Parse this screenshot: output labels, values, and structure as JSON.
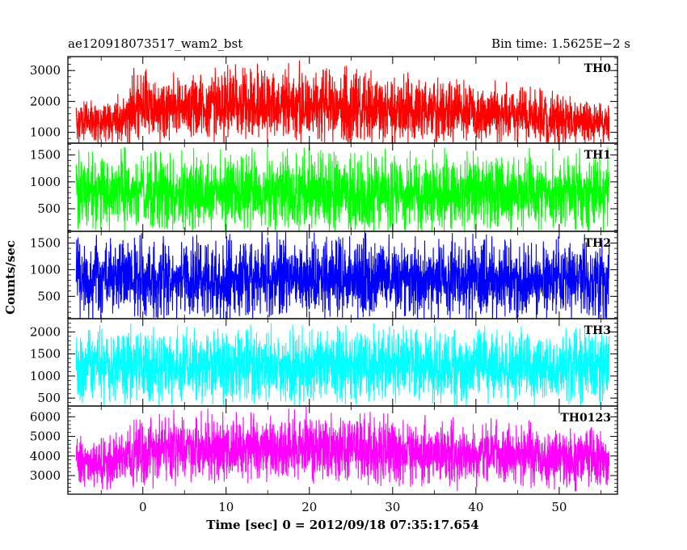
{
  "chart_data": {
    "type": "line",
    "title": "ae120918073517_wam2_bst",
    "subtitle": "Bin time: 1.5625E−2 s",
    "xlabel": "Time [sec] 0 = 2012/09/18 07:35:17.654",
    "ylabel": "Counts/sec",
    "xlim": [
      -9,
      57
    ],
    "x_ticks": [
      0,
      10,
      20,
      30,
      40,
      50
    ],
    "x_tick_labels": [
      "0",
      "10",
      "20",
      "30",
      "40",
      "50"
    ],
    "x_data_range": [
      -8,
      56
    ],
    "grid": false,
    "panels": [
      {
        "name": "TH0",
        "color": "#ff0000",
        "ylim": [
          650,
          3450
        ],
        "y_ticks": [
          1000,
          2000,
          3000
        ],
        "y_tick_labels": [
          "1000",
          "2000",
          "3000"
        ],
        "envelope": {
          "x": [
            -8,
            -2,
            -1.5,
            0,
            5,
            10,
            15,
            20,
            25,
            30,
            35,
            40,
            45,
            50,
            56
          ],
          "low": [
            850,
            850,
            900,
            1050,
            1100,
            1100,
            1080,
            1050,
            1000,
            950,
            950,
            950,
            900,
            850,
            850
          ],
          "high": [
            1800,
            1950,
            2700,
            2600,
            2550,
            2650,
            2700,
            2750,
            2650,
            2500,
            2400,
            2300,
            2200,
            2000,
            1800
          ]
        }
      },
      {
        "name": "TH1",
        "color": "#00ff00",
        "ylim": [
          80,
          1720
        ],
        "y_ticks": [
          500,
          1000,
          1500
        ],
        "y_tick_labels": [
          "500",
          "1000",
          "1500"
        ],
        "envelope": {
          "x": [
            -8,
            56
          ],
          "low": [
            300,
            300
          ],
          "high": [
            1300,
            1300
          ]
        }
      },
      {
        "name": "TH2",
        "color": "#0000ff",
        "ylim": [
          80,
          1720
        ],
        "y_ticks": [
          500,
          1000,
          1500
        ],
        "y_tick_labels": [
          "500",
          "1000",
          "1500"
        ],
        "envelope": {
          "x": [
            -8,
            56
          ],
          "low": [
            300,
            300
          ],
          "high": [
            1350,
            1350
          ]
        }
      },
      {
        "name": "TH3",
        "color": "#00ffff",
        "ylim": [
          320,
          2300
        ],
        "y_ticks": [
          500,
          1000,
          1500,
          2000
        ],
        "y_tick_labels": [
          "500",
          "1000",
          "1500",
          "2000"
        ],
        "envelope": {
          "x": [
            -8,
            56
          ],
          "low": [
            650,
            650
          ],
          "high": [
            1800,
            1800
          ]
        }
      },
      {
        "name": "TH0123",
        "color": "#ff00ff",
        "ylim": [
          2050,
          6550
        ],
        "y_ticks": [
          3000,
          4000,
          5000,
          6000
        ],
        "y_tick_labels": [
          "3000",
          "4000",
          "5000",
          "6000"
        ],
        "envelope": {
          "x": [
            -8,
            -2,
            -1.5,
            0,
            10,
            20,
            30,
            40,
            50,
            56
          ],
          "low": [
            2800,
            2800,
            3000,
            3100,
            3200,
            3150,
            3000,
            2950,
            2850,
            2800
          ],
          "high": [
            4600,
            4700,
            5400,
            5500,
            5600,
            5600,
            5400,
            5200,
            5000,
            4800
          ]
        }
      }
    ]
  }
}
